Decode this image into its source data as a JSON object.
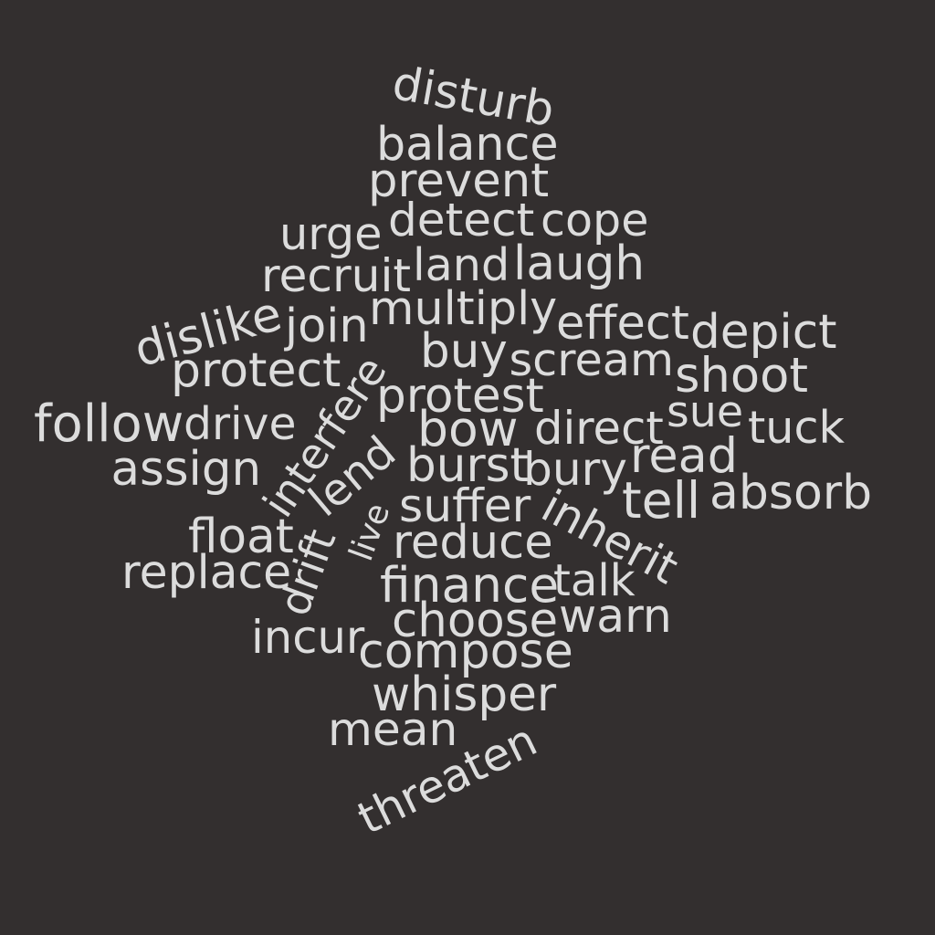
{
  "words": [
    "disturb",
    "balance",
    "prevent",
    "urge",
    "detect",
    "cope",
    "recruit",
    "land",
    "laugh",
    "multiply",
    "dislike",
    "join",
    "effect",
    "depict",
    "protect",
    "buy",
    "scream",
    "shoot",
    "interfere",
    "protest",
    "follow",
    "drive",
    "sue",
    "tuck",
    "bow",
    "direct",
    "read",
    "assign",
    "lend",
    "burst",
    "bury",
    "absorb",
    "live",
    "suffer",
    "inherit",
    "tell",
    "float",
    "drift",
    "reduce",
    "replace",
    "finance",
    "talk",
    "choose",
    "warn",
    "incur",
    "compose",
    "whisper",
    "mean",
    "threaten"
  ],
  "colors": {
    "background": "#332f2f",
    "text": "#dcdcdc"
  }
}
